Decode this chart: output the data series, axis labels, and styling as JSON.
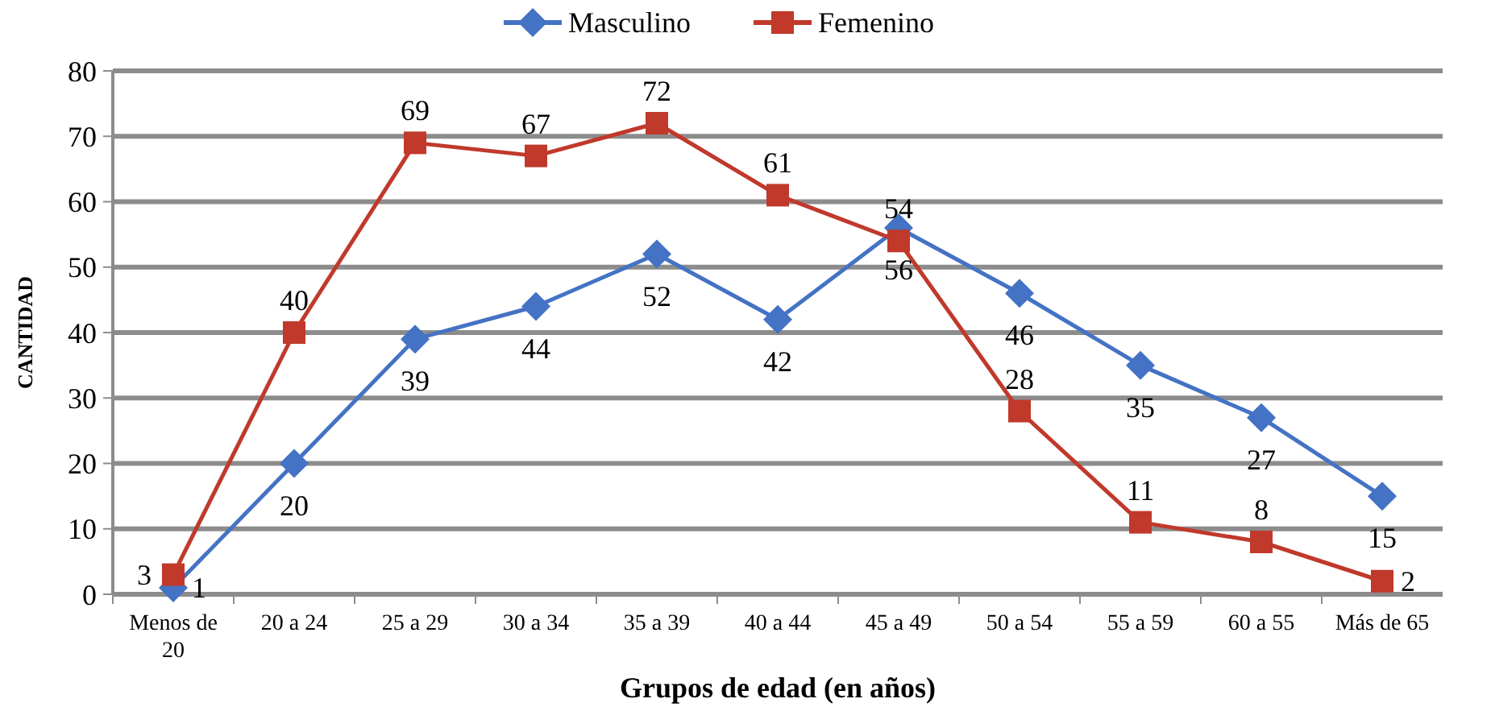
{
  "chart_data": {
    "type": "line",
    "xlabel": "Grupos de edad (en años)",
    "ylabel": "CANTIDAD",
    "categories": [
      "Menos de 20",
      "20 a 24",
      "25 a 29",
      "30 a 34",
      "35 a 39",
      "40 a 44",
      "45 a 49",
      "50 a 54",
      "55 a 59",
      "60 a 55",
      "Más de 65"
    ],
    "series": [
      {
        "name": "Masculino",
        "color": "#4472c4",
        "marker": "diamond",
        "values": [
          1,
          20,
          39,
          44,
          52,
          42,
          56,
          46,
          35,
          27,
          15
        ]
      },
      {
        "name": "Femenino",
        "color": "#c0392b",
        "marker": "square",
        "values": [
          3,
          40,
          69,
          67,
          72,
          61,
          54,
          28,
          11,
          8,
          2
        ]
      }
    ],
    "ylim": [
      0,
      80
    ],
    "yticks": [
      0,
      10,
      20,
      30,
      40,
      50,
      60,
      70,
      80
    ],
    "grid": "y",
    "legend": "top",
    "data_labels": true
  }
}
